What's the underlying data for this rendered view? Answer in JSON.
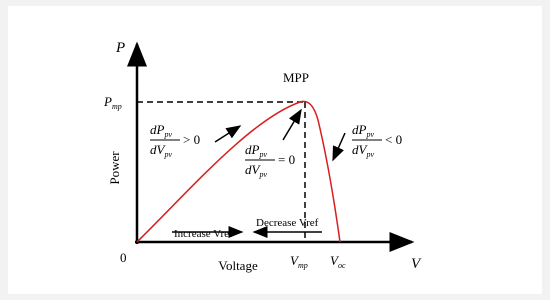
{
  "axes": {
    "y_symbol": "P",
    "y_label": "Power",
    "x_symbol": "V",
    "x_label": "Voltage",
    "origin": "0"
  },
  "points": {
    "mpp": "MPP",
    "p_mp": {
      "main": "P",
      "sub": "mp"
    },
    "v_mp": {
      "main": "V",
      "sub": "mp"
    },
    "v_oc": {
      "main": "V",
      "sub": "oc"
    }
  },
  "conditions": [
    {
      "num": "dP",
      "num_sub": "pv",
      "den": "dV",
      "den_sub": "pv",
      "relation": "> 0"
    },
    {
      "num": "dP",
      "num_sub": "pv",
      "den": "dV",
      "den_sub": "pv",
      "relation": "= 0"
    },
    {
      "num": "dP",
      "num_sub": "pv",
      "den": "dV",
      "den_sub": "pv",
      "relation": "< 0"
    }
  ],
  "arrows": {
    "increase": "Increase Vref",
    "decrease": "Decrease Vref"
  }
}
